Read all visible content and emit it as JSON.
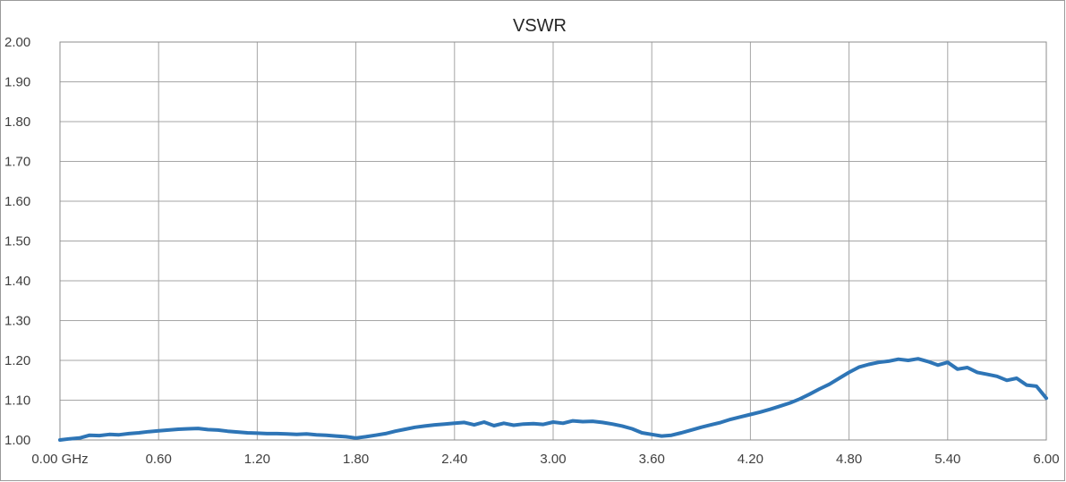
{
  "chart_data": {
    "type": "line",
    "title": "VSWR",
    "xlabel": "",
    "ylabel": "",
    "xlim": [
      0,
      6
    ],
    "ylim": [
      1.0,
      2.0
    ],
    "grid": true,
    "legend": "none",
    "x_tick_labels": [
      "0.00 GHz",
      "0.60",
      "1.20",
      "1.80",
      "2.40",
      "3.00",
      "3.60",
      "4.20",
      "4.80",
      "5.40",
      "6.00"
    ],
    "x_tick_values": [
      0,
      0.6,
      1.2,
      1.8,
      2.4,
      3.0,
      3.6,
      4.2,
      4.8,
      5.4,
      6.0
    ],
    "y_tick_labels": [
      "1.00",
      "1.10",
      "1.20",
      "1.30",
      "1.40",
      "1.50",
      "1.60",
      "1.70",
      "1.80",
      "1.90",
      "2.00"
    ],
    "y_tick_values": [
      1.0,
      1.1,
      1.2,
      1.3,
      1.4,
      1.5,
      1.6,
      1.7,
      1.8,
      1.9,
      2.0
    ],
    "series": [
      {
        "color": "#2e75b6",
        "x": [
          0.0,
          0.06,
          0.12,
          0.18,
          0.24,
          0.3,
          0.36,
          0.42,
          0.48,
          0.54,
          0.6,
          0.66,
          0.72,
          0.78,
          0.84,
          0.9,
          0.96,
          1.02,
          1.08,
          1.14,
          1.2,
          1.26,
          1.32,
          1.38,
          1.44,
          1.5,
          1.56,
          1.62,
          1.68,
          1.74,
          1.8,
          1.86,
          1.92,
          1.98,
          2.04,
          2.1,
          2.16,
          2.22,
          2.28,
          2.34,
          2.4,
          2.46,
          2.52,
          2.58,
          2.64,
          2.7,
          2.76,
          2.82,
          2.88,
          2.94,
          3.0,
          3.06,
          3.12,
          3.18,
          3.24,
          3.3,
          3.36,
          3.42,
          3.48,
          3.54,
          3.6,
          3.66,
          3.72,
          3.78,
          3.84,
          3.9,
          3.96,
          4.02,
          4.08,
          4.14,
          4.2,
          4.26,
          4.32,
          4.38,
          4.44,
          4.5,
          4.56,
          4.62,
          4.68,
          4.74,
          4.8,
          4.86,
          4.92,
          4.98,
          5.04,
          5.1,
          5.16,
          5.22,
          5.28,
          5.34,
          5.4,
          5.46,
          5.52,
          5.58,
          5.64,
          5.7,
          5.76,
          5.82,
          5.88,
          5.94,
          6.0
        ],
        "y": [
          1.0,
          1.003,
          1.005,
          1.012,
          1.011,
          1.014,
          1.013,
          1.016,
          1.018,
          1.021,
          1.023,
          1.025,
          1.027,
          1.028,
          1.029,
          1.026,
          1.025,
          1.022,
          1.02,
          1.018,
          1.017,
          1.016,
          1.016,
          1.015,
          1.014,
          1.015,
          1.013,
          1.012,
          1.01,
          1.008,
          1.005,
          1.008,
          1.012,
          1.016,
          1.022,
          1.027,
          1.032,
          1.035,
          1.038,
          1.04,
          1.042,
          1.044,
          1.038,
          1.045,
          1.036,
          1.042,
          1.037,
          1.04,
          1.041,
          1.039,
          1.045,
          1.042,
          1.048,
          1.046,
          1.047,
          1.044,
          1.04,
          1.035,
          1.028,
          1.018,
          1.014,
          1.01,
          1.012,
          1.018,
          1.025,
          1.032,
          1.038,
          1.044,
          1.052,
          1.058,
          1.064,
          1.07,
          1.077,
          1.085,
          1.093,
          1.103,
          1.115,
          1.128,
          1.14,
          1.155,
          1.17,
          1.183,
          1.19,
          1.195,
          1.198,
          1.203,
          1.2,
          1.204,
          1.197,
          1.188,
          1.195,
          1.178,
          1.182,
          1.17,
          1.165,
          1.16,
          1.15,
          1.155,
          1.138,
          1.135,
          1.105
        ]
      }
    ]
  }
}
